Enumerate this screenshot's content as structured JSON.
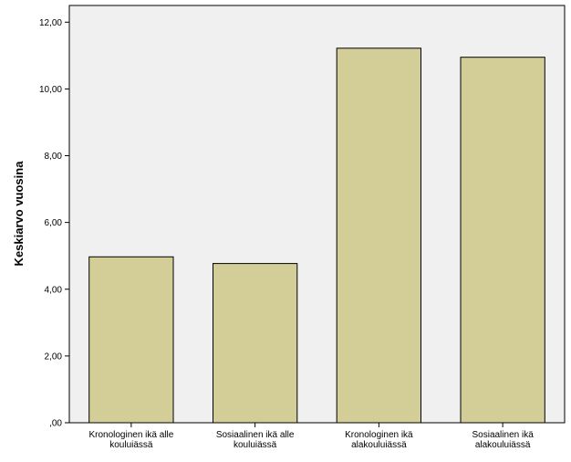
{
  "chart_data": {
    "type": "bar",
    "title": "",
    "xlabel": "",
    "ylabel": "Keskiarvo vuosina",
    "ylim": [
      0,
      12.5
    ],
    "yticks": [
      0,
      2,
      4,
      6,
      8,
      10,
      12
    ],
    "ytick_labels": [
      ",00",
      "2,00",
      "4,00",
      "6,00",
      "8,00",
      "10,00",
      "12,00"
    ],
    "categories": [
      [
        "Kronologinen ikä alle",
        "kouluiässä"
      ],
      [
        "Sosiaalinen ikä alle",
        "kouluiässä"
      ],
      [
        "Kronologinen ikä",
        "alakouluiässä"
      ],
      [
        "Sosiaalinen ikä",
        "alakouluiässä"
      ]
    ],
    "values": [
      4.97,
      4.77,
      11.22,
      10.95
    ],
    "bar_color": "#d3ce98",
    "bar_edge_color": "#000000",
    "plot_background": "#f0f0f0",
    "grid": false
  }
}
